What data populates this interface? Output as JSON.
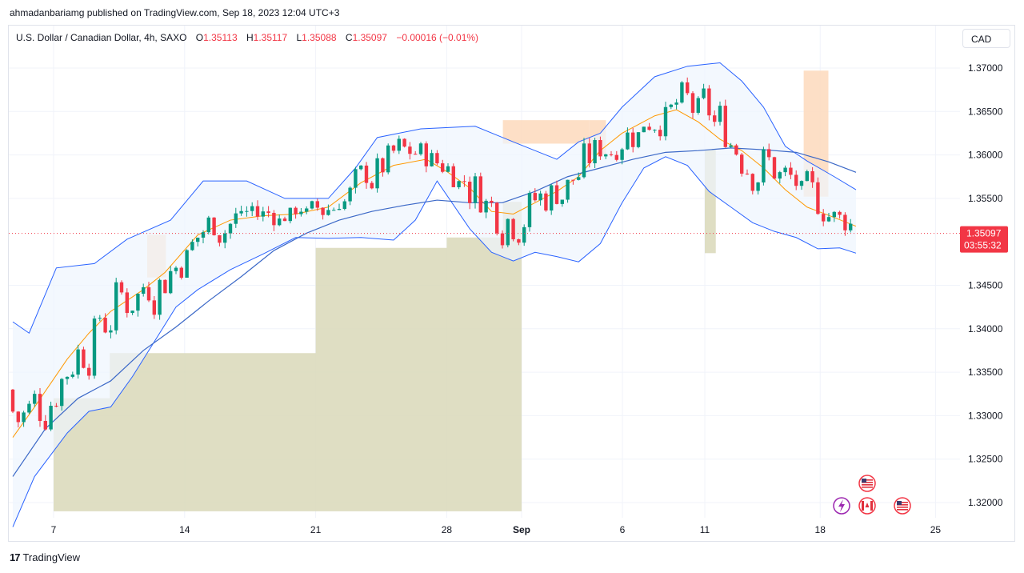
{
  "header": {
    "publisher": "ahmadanbariamg published on TradingView.com, Sep 18, 2023 12:04 UTC+3"
  },
  "legend": {
    "symbol": "U.S. Dollar / Canadian Dollar, 4h, SAXO",
    "open_label": "O",
    "open": "1.35113",
    "high_label": "H",
    "high": "1.35117",
    "low_label": "L",
    "low": "1.35088",
    "close_label": "C",
    "close": "1.35097",
    "change": "−0.00016 (−0.01%)"
  },
  "currency_button": "CAD",
  "price_label": {
    "price": "1.35097",
    "countdown": "03:55:32"
  },
  "footer": {
    "brand": "TradingView"
  },
  "colors": {
    "up": "#089981",
    "down": "#f23645",
    "band_line": "#2962ff",
    "basis": "#ff9800",
    "long_ma": "#3b68c7",
    "band_fill": "#eef5fd",
    "zone_fill": "#d9d8b8",
    "supply_fill": "#fddcc0",
    "grid": "#f0f3fa"
  },
  "events": {
    "icons": [
      "us-flag-icon",
      "lightning-icon",
      "canada-flag-icon",
      "us-flag-icon"
    ]
  },
  "chart_data": {
    "type": "candlestick",
    "y_axis": {
      "ticks": [
        1.37,
        1.365,
        1.36,
        1.355,
        1.345,
        1.34,
        1.335,
        1.33,
        1.325,
        1.32
      ],
      "tick_labels": [
        "1.37000",
        "1.36500",
        "1.36000",
        "1.35500",
        "1.34500",
        "1.34000",
        "1.33500",
        "1.33000",
        "1.32500",
        "1.32000"
      ],
      "range": [
        1.3185,
        1.3715
      ]
    },
    "x_axis": {
      "tick_labels": [
        {
          "label": "7",
          "date": "2023-08-07"
        },
        {
          "label": "14",
          "date": "2023-08-14"
        },
        {
          "label": "21",
          "date": "2023-08-21"
        },
        {
          "label": "28",
          "date": "2023-08-28"
        },
        {
          "label": "Sep",
          "date": "2023-09-01",
          "bold": true
        },
        {
          "label": "6",
          "date": "2023-09-06"
        },
        {
          "label": "11",
          "date": "2023-09-11"
        },
        {
          "label": "18",
          "date": "2023-09-18"
        },
        {
          "label": "25",
          "date": "2023-09-25"
        }
      ]
    },
    "current_price": 1.35097,
    "demand_zone_upper": [
      {
        "start": "2023-08-07",
        "end": "2023-08-10",
        "level": 1.332
      },
      {
        "start": "2023-08-10",
        "end": "2023-08-21",
        "level": 1.3372
      },
      {
        "start": "2023-08-21",
        "end": "2023-08-28",
        "level": 1.3493
      },
      {
        "start": "2023-08-28",
        "end": "2023-08-31",
        "level": 1.3505
      },
      {
        "start": "2023-08-31",
        "end": "2023-09-01",
        "level": 1.3546
      }
    ],
    "demand_zone_lower": 1.319,
    "resistance_zones": [
      {
        "start": "2023-09-11",
        "end": "2023-09-11T16:00",
        "top": 1.3606,
        "bottom": 1.3487
      }
    ],
    "supply_zones": [
      {
        "start": "2023-08-12",
        "end": "2023-08-13",
        "top": 1.3508,
        "bottom": 1.3459
      },
      {
        "start": "2023-08-31",
        "end": "2023-09-04",
        "top": 1.364,
        "bottom": 1.3613
      },
      {
        "start": "2023-09-04",
        "end": "2023-09-05",
        "top": 1.364,
        "bottom": 1.36
      },
      {
        "start": "2023-09-17",
        "end": "2023-09-18T12:00",
        "top": 1.3697,
        "bottom": 1.3552
      }
    ],
    "bollinger": {
      "upper": [
        [
          0,
          1.3408
        ],
        [
          3,
          1.3395
        ],
        [
          8,
          1.347
        ],
        [
          15,
          1.3475
        ],
        [
          21,
          1.3503
        ],
        [
          29,
          1.3525
        ],
        [
          35,
          1.357
        ],
        [
          43,
          1.357
        ],
        [
          50,
          1.355
        ],
        [
          58,
          1.355
        ],
        [
          63,
          1.3585
        ],
        [
          67,
          1.362
        ],
        [
          75,
          1.363
        ],
        [
          85,
          1.3633
        ],
        [
          92,
          1.3615
        ],
        [
          96,
          1.3605
        ],
        [
          100,
          1.3595
        ],
        [
          104,
          1.3615
        ],
        [
          108,
          1.3625
        ],
        [
          112,
          1.3655
        ],
        [
          118,
          1.369
        ],
        [
          124,
          1.3702
        ],
        [
          130,
          1.3706
        ],
        [
          134,
          1.3685
        ],
        [
          138,
          1.3655
        ],
        [
          142,
          1.361
        ],
        [
          146,
          1.3593
        ],
        [
          151,
          1.3575
        ],
        [
          155,
          1.356
        ]
      ],
      "middle": [
        [
          0,
          1.3275
        ],
        [
          4,
          1.331
        ],
        [
          10,
          1.3365
        ],
        [
          14,
          1.3395
        ],
        [
          18,
          1.342
        ],
        [
          24,
          1.3445
        ],
        [
          28,
          1.3465
        ],
        [
          34,
          1.3508
        ],
        [
          40,
          1.3525
        ],
        [
          46,
          1.353
        ],
        [
          52,
          1.3532
        ],
        [
          58,
          1.354
        ],
        [
          64,
          1.3568
        ],
        [
          70,
          1.3588
        ],
        [
          76,
          1.3595
        ],
        [
          80,
          1.358
        ],
        [
          84,
          1.3562
        ],
        [
          88,
          1.3535
        ],
        [
          92,
          1.3532
        ],
        [
          96,
          1.3545
        ],
        [
          100,
          1.3558
        ],
        [
          104,
          1.3575
        ],
        [
          108,
          1.3605
        ],
        [
          112,
          1.3625
        ],
        [
          118,
          1.3645
        ],
        [
          122,
          1.3652
        ],
        [
          126,
          1.3638
        ],
        [
          130,
          1.3618
        ],
        [
          134,
          1.3605
        ],
        [
          138,
          1.3585
        ],
        [
          142,
          1.356
        ],
        [
          146,
          1.354
        ],
        [
          151,
          1.3528
        ],
        [
          155,
          1.3518
        ]
      ],
      "lower": [
        [
          0,
          1.3172
        ],
        [
          4,
          1.323
        ],
        [
          10,
          1.328
        ],
        [
          14,
          1.3305
        ],
        [
          18,
          1.331
        ],
        [
          22,
          1.3345
        ],
        [
          26,
          1.3385
        ],
        [
          30,
          1.3425
        ],
        [
          34,
          1.3445
        ],
        [
          40,
          1.3468
        ],
        [
          46,
          1.3486
        ],
        [
          52,
          1.3505
        ],
        [
          58,
          1.3504
        ],
        [
          64,
          1.3505
        ],
        [
          70,
          1.3502
        ],
        [
          74,
          1.3525
        ],
        [
          78,
          1.357
        ],
        [
          84,
          1.3515
        ],
        [
          88,
          1.3488
        ],
        [
          92,
          1.3478
        ],
        [
          96,
          1.3488
        ],
        [
          100,
          1.3483
        ],
        [
          104,
          1.3477
        ],
        [
          108,
          1.3498
        ],
        [
          112,
          1.3545
        ],
        [
          116,
          1.3585
        ],
        [
          120,
          1.3598
        ],
        [
          124,
          1.3588
        ],
        [
          128,
          1.3558
        ],
        [
          132,
          1.354
        ],
        [
          136,
          1.3522
        ],
        [
          140,
          1.3512
        ],
        [
          144,
          1.3505
        ],
        [
          148,
          1.3492
        ],
        [
          152,
          1.3493
        ],
        [
          155,
          1.3487
        ]
      ]
    },
    "long_ma": [
      [
        0,
        1.323
      ],
      [
        6,
        1.3285
      ],
      [
        12,
        1.332
      ],
      [
        18,
        1.334
      ],
      [
        24,
        1.3375
      ],
      [
        30,
        1.3402
      ],
      [
        36,
        1.3432
      ],
      [
        42,
        1.346
      ],
      [
        48,
        1.349
      ],
      [
        54,
        1.351
      ],
      [
        60,
        1.3525
      ],
      [
        66,
        1.3535
      ],
      [
        72,
        1.3542
      ],
      [
        78,
        1.3548
      ],
      [
        84,
        1.3545
      ],
      [
        90,
        1.3545
      ],
      [
        96,
        1.3558
      ],
      [
        102,
        1.3575
      ],
      [
        108,
        1.3585
      ],
      [
        114,
        1.3595
      ],
      [
        120,
        1.3603
      ],
      [
        126,
        1.3605
      ],
      [
        132,
        1.3608
      ],
      [
        138,
        1.3606
      ],
      [
        144,
        1.3603
      ],
      [
        150,
        1.3592
      ],
      [
        155,
        1.358
      ]
    ],
    "candles_source": "generated procedurally from visible trend; values in price units"
  }
}
